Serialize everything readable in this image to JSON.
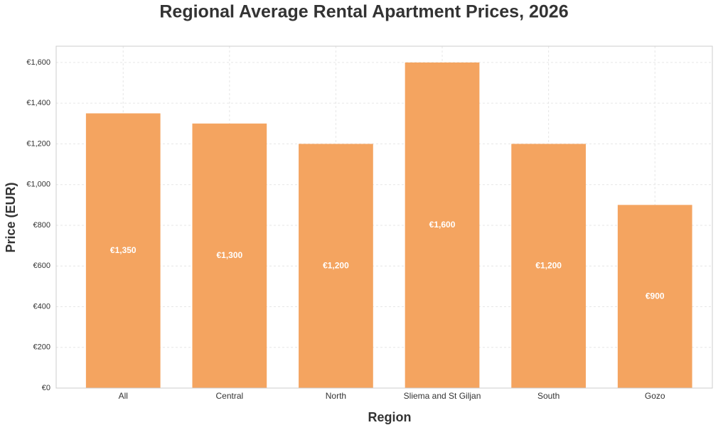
{
  "chart_data": {
    "type": "bar",
    "title": "Regional Average Rental Apartment Prices, 2026",
    "x_label": "Region",
    "y_label": "Price (EUR)",
    "categories": [
      "All",
      "Central",
      "North",
      "Sliema and St Giljan",
      "South",
      "Gozo"
    ],
    "values": [
      1350,
      1300,
      1200,
      1600,
      1200,
      900
    ],
    "value_labels": [
      "€1,350",
      "€1,300",
      "€1,200",
      "€1,600",
      "€1,200",
      "€900"
    ],
    "color": "#f4a460",
    "ylim": [
      0,
      1680
    ],
    "yticks": [
      {
        "value": 0,
        "label": "€0"
      },
      {
        "value": 200,
        "label": "€200"
      },
      {
        "value": 400,
        "label": "€400"
      },
      {
        "value": 600,
        "label": "€600"
      },
      {
        "value": 800,
        "label": "€800"
      },
      {
        "value": 1000,
        "label": "€1,000"
      },
      {
        "value": 1200,
        "label": "€1,200"
      },
      {
        "value": 1400,
        "label": "€1,400"
      },
      {
        "value": 1600,
        "label": "€1,600"
      }
    ],
    "grid": true
  }
}
